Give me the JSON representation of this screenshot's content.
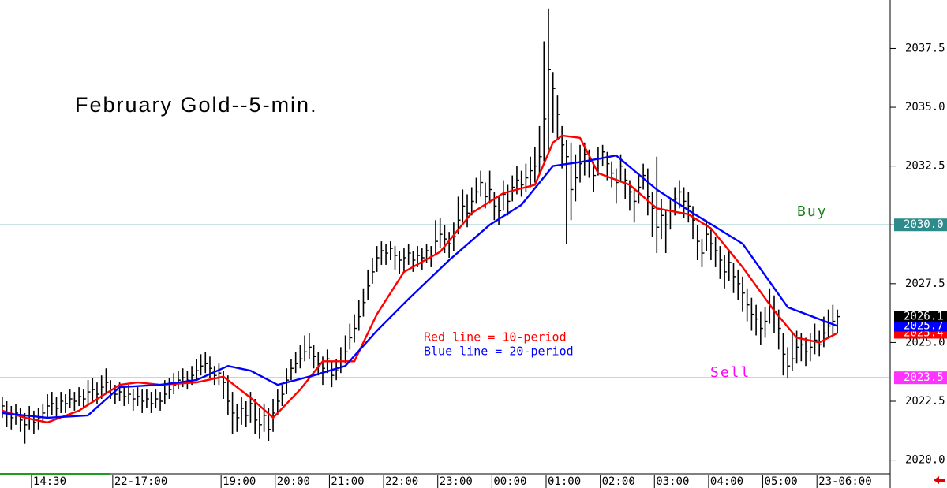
{
  "chart_data": {
    "type": "hlc",
    "title": "February Gold--5-min.",
    "bar_color": "#000000",
    "xlim": [
      -0.5,
      196.7
    ],
    "xticks": [
      {
        "value": 7,
        "label": "14:30"
      },
      {
        "value": 25,
        "label": "22-17:00"
      },
      {
        "value": 49,
        "label": "19:00"
      },
      {
        "value": 61,
        "label": "20:00"
      },
      {
        "value": 73,
        "label": "21:00"
      },
      {
        "value": 85,
        "label": "22:00"
      },
      {
        "value": 97,
        "label": "23:00"
      },
      {
        "value": 109,
        "label": "00:00"
      },
      {
        "value": 121,
        "label": "01:00"
      },
      {
        "value": 133,
        "label": "02:00"
      },
      {
        "value": 145,
        "label": "03:00"
      },
      {
        "value": 157,
        "label": "04:00"
      },
      {
        "value": 169,
        "label": "05:00"
      },
      {
        "value": 181,
        "label": "23-06:00"
      }
    ],
    "ylim": [
      2019.45,
      2039.56
    ],
    "yticks": [
      {
        "value": 2020,
        "label": "2020.0"
      },
      {
        "value": 2022.5,
        "label": "2022.5"
      },
      {
        "value": 2025,
        "label": "2025.0"
      },
      {
        "value": 2027.5,
        "label": "2027.5"
      },
      {
        "value": 2030,
        "label": "2030.0"
      },
      {
        "value": 2032.5,
        "label": "2032.5"
      },
      {
        "value": 2035,
        "label": "2035.0"
      },
      {
        "value": 2037.5,
        "label": "2037.5"
      }
    ],
    "high": [
      2022.7,
      2022.5,
      2022.3,
      2022.4,
      2022.2,
      2022.0,
      2022.3,
      2022.1,
      2022.2,
      2022.4,
      2022.8,
      2022.9,
      2022.7,
      2022.9,
      2022.8,
      2023.0,
      2022.9,
      2023.1,
      2023.0,
      2023.4,
      2023.5,
      2023.3,
      2023.6,
      2023.9,
      2023.4,
      2023.2,
      2023.3,
      2023.1,
      2023.2,
      2023.0,
      2023.1,
      2023.0,
      2023.0,
      2022.9,
      2023.0,
      2022.9,
      2023.4,
      2023.5,
      2023.7,
      2023.8,
      2023.9,
      2023.8,
      2024.0,
      2024.3,
      2024.5,
      2024.6,
      2024.4,
      2024.0,
      2024.1,
      2023.8,
      2023.6,
      2022.9,
      2022.4,
      2022.7,
      2022.5,
      2022.9,
      2022.6,
      2022.2,
      2022.4,
      2022.2,
      2022.6,
      2023.0,
      2023.2,
      2023.9,
      2024.3,
      2024.6,
      2024.9,
      2025.3,
      2025.4,
      2024.9,
      2024.6,
      2024.4,
      2024.7,
      2024.2,
      2024.3,
      2024.8,
      2025.3,
      2025.8,
      2026.2,
      2026.8,
      2027.3,
      2028.1,
      2028.6,
      2029.1,
      2029.3,
      2029.2,
      2029.3,
      2029.1,
      2028.9,
      2029.0,
      2029.2,
      2028.9,
      2029.1,
      2029.0,
      2029.2,
      2029.1,
      2030.2,
      2030.3,
      2030.0,
      2029.7,
      2030.1,
      2031.2,
      2031.5,
      2031.3,
      2031.6,
      2032.0,
      2032.3,
      2031.8,
      2032.3,
      2031.4,
      2031.2,
      2031.9,
      2031.7,
      2032.1,
      2032.5,
      2032.3,
      2032.6,
      2032.9,
      2033.3,
      2034.2,
      2037.8,
      2039.2,
      2036.5,
      2035.5,
      2034.2,
      2033.6,
      2033.5,
      2033.0,
      2033.4,
      2033.5,
      2033.2,
      2032.7,
      2033.3,
      2033.4,
      2033.1,
      2032.7,
      2032.4,
      2033.0,
      2032.4,
      2031.9,
      2031.5,
      2032.1,
      2032.6,
      2032.4,
      2031.4,
      2032.9,
      2031.1,
      2030.6,
      2031.1,
      2031.6,
      2031.9,
      2031.6,
      2031.4,
      2030.8,
      2030.0,
      2029.4,
      2030.2,
      2029.8,
      2029.5,
      2029.1,
      2028.7,
      2028.9,
      2028.4,
      2028.1,
      2027.8,
      2027.3,
      2026.9,
      2026.6,
      2026.3,
      2026.5,
      2027.3,
      2027.0,
      2026.4,
      2025.4,
      2024.8,
      2025.4,
      2025.5,
      2025.4,
      2025.2,
      2025.4,
      2025.8,
      2025.5,
      2026.1,
      2026.4,
      2026.6,
      2026.4
    ],
    "low": [
      2021.8,
      2021.4,
      2021.3,
      2021.5,
      2021.2,
      2020.7,
      2021.3,
      2021.1,
      2021.3,
      2021.6,
      2021.8,
      2021.9,
      2021.8,
      2022.0,
      2022.0,
      2022.2,
      2022.1,
      2022.3,
      2022.2,
      2022.4,
      2022.5,
      2022.4,
      2022.6,
      2022.8,
      2022.6,
      2022.4,
      2022.5,
      2022.3,
      2022.4,
      2022.1,
      2022.3,
      2022.0,
      2022.2,
      2022.0,
      2022.2,
      2022.1,
      2022.4,
      2022.6,
      2022.8,
      2023.0,
      2023.1,
      2023.0,
      2023.2,
      2023.4,
      2023.6,
      2023.7,
      2023.5,
      2023.2,
      2023.2,
      2022.6,
      2021.9,
      2021.1,
      2021.2,
      2021.5,
      2021.4,
      2021.6,
      2021.1,
      2020.9,
      2021.2,
      2020.8,
      2021.2,
      2021.9,
      2022.3,
      2022.8,
      2023.4,
      2023.7,
      2023.9,
      2024.2,
      2024.3,
      2023.9,
      2023.6,
      2023.2,
      2023.7,
      2023.1,
      2023.4,
      2023.7,
      2024.1,
      2024.7,
      2025.0,
      2025.5,
      2026.1,
      2026.8,
      2027.5,
      2028.0,
      2028.3,
      2028.3,
      2028.5,
      2028.1,
      2027.9,
      2028.0,
      2028.3,
      2028.0,
      2028.2,
      2028.1,
      2028.4,
      2028.2,
      2028.7,
      2029.0,
      2028.8,
      2028.6,
      2028.9,
      2029.6,
      2030.1,
      2029.9,
      2030.4,
      2030.9,
      2031.2,
      2030.7,
      2030.9,
      2030.2,
      2030.0,
      2030.6,
      2030.4,
      2031.0,
      2031.3,
      2031.2,
      2031.4,
      2031.6,
      2031.8,
      2032.2,
      2032.7,
      2033.2,
      2033.9,
      2033.6,
      2032.4,
      2029.2,
      2030.2,
      2031.0,
      2031.8,
      2032.1,
      2032.0,
      2031.4,
      2032.1,
      2032.5,
      2031.9,
      2031.6,
      2030.9,
      2031.8,
      2031.1,
      2030.6,
      2030.1,
      2030.9,
      2031.5,
      2030.4,
      2029.5,
      2028.8,
      2029.4,
      2028.8,
      2029.8,
      2030.4,
      2030.7,
      2030.3,
      2030.1,
      2029.4,
      2028.5,
      2028.2,
      2028.9,
      2028.5,
      2028.2,
      2027.7,
      2027.3,
      2027.6,
      2027.1,
      2026.8,
      2026.3,
      2025.9,
      2025.5,
      2025.3,
      2024.9,
      2025.2,
      2025.8,
      2025.4,
      2024.7,
      2023.6,
      2023.5,
      2023.8,
      2024.1,
      2024.2,
      2024.0,
      2024.2,
      2024.5,
      2024.4,
      2024.8,
      2025.2,
      2025.3,
      2025.4
    ],
    "close": [
      2022.3,
      2022.0,
      2021.8,
      2022.0,
      2021.7,
      2021.5,
      2021.9,
      2021.6,
      2021.8,
      2022.0,
      2022.3,
      2022.4,
      2022.2,
      2022.5,
      2022.4,
      2022.6,
      2022.5,
      2022.7,
      2022.6,
      2022.9,
      2023.0,
      2022.8,
      2023.1,
      2023.3,
      2023.0,
      2022.8,
      2022.9,
      2022.7,
      2022.8,
      2022.6,
      2022.7,
      2022.5,
      2022.6,
      2022.4,
      2022.6,
      2022.5,
      2022.8,
      2023.0,
      2023.2,
      2023.4,
      2023.5,
      2023.4,
      2023.6,
      2023.8,
      2024.0,
      2024.1,
      2023.9,
      2023.6,
      2023.7,
      2023.3,
      2022.5,
      2022.0,
      2021.8,
      2022.2,
      2021.9,
      2022.4,
      2021.7,
      2021.5,
      2021.9,
      2021.3,
      2022.0,
      2022.5,
      2022.8,
      2023.4,
      2023.9,
      2024.1,
      2024.3,
      2024.6,
      2024.8,
      2024.4,
      2024.1,
      2023.9,
      2024.3,
      2023.6,
      2023.8,
      2024.2,
      2024.6,
      2025.2,
      2025.6,
      2026.1,
      2026.7,
      2027.4,
      2028.0,
      2028.6,
      2028.9,
      2028.8,
      2029.0,
      2028.7,
      2028.5,
      2028.6,
      2028.8,
      2028.5,
      2028.7,
      2028.6,
      2028.9,
      2028.7,
      2029.3,
      2029.6,
      2029.4,
      2029.2,
      2029.5,
      2030.2,
      2030.8,
      2030.5,
      2031.0,
      2031.4,
      2031.8,
      2031.2,
      2031.5,
      2030.8,
      2030.6,
      2031.3,
      2031.0,
      2031.6,
      2031.9,
      2031.7,
      2032.0,
      2032.3,
      2032.5,
      2032.9,
      2034.5,
      2036.6,
      2035.8,
      2034.7,
      2033.4,
      2032.9,
      2031.5,
      2032.0,
      2032.6,
      2033.0,
      2032.7,
      2032.1,
      2032.8,
      2033.1,
      2032.6,
      2032.2,
      2031.8,
      2032.5,
      2031.9,
      2031.4,
      2031.0,
      2031.6,
      2032.1,
      2031.2,
      2030.7,
      2029.9,
      2030.4,
      2030.0,
      2030.6,
      2031.1,
      2031.4,
      2031.0,
      2030.8,
      2030.2,
      2029.3,
      2028.8,
      2029.6,
      2029.2,
      2028.9,
      2028.5,
      2028.0,
      2028.4,
      2027.8,
      2027.5,
      2027.1,
      2026.6,
      2026.2,
      2026.0,
      2025.6,
      2025.9,
      2026.5,
      2026.3,
      2025.6,
      2024.5,
      2024.0,
      2024.3,
      2024.8,
      2024.9,
      2024.6,
      2024.8,
      2025.1,
      2024.9,
      2025.4,
      2025.7,
      2025.9,
      2026.1
    ],
    "series": [
      {
        "name": "Red line = 10-period",
        "color": "#ff0000",
        "x": [
          0,
          5,
          10,
          17,
          26,
          30,
          35,
          43,
          49,
          55,
          60,
          66,
          71,
          78,
          83,
          89,
          97,
          104,
          111,
          118,
          122,
          124,
          128,
          132,
          139,
          145,
          152,
          157,
          164,
          171,
          176,
          181,
          185
        ],
        "values": [
          2022.1,
          2021.8,
          2021.6,
          2022.1,
          2023.2,
          2023.3,
          2023.2,
          2023.3,
          2023.55,
          2022.65,
          2021.8,
          2023.0,
          2024.2,
          2024.2,
          2026.2,
          2028.0,
          2028.85,
          2030.5,
          2031.35,
          2031.7,
          2033.5,
          2033.8,
          2033.7,
          2032.2,
          2031.7,
          2030.7,
          2030.45,
          2029.85,
          2028.2,
          2026.35,
          2025.2,
          2025.0,
          2025.4
        ]
      },
      {
        "name": "Blue line = 20-period",
        "color": "#0000ff",
        "x": [
          0,
          10,
          19,
          26,
          35,
          43,
          50,
          55,
          61,
          69,
          76,
          83,
          90,
          99,
          108,
          115,
          122,
          129,
          136,
          145,
          153,
          164,
          174,
          185
        ],
        "values": [
          2022.0,
          2021.8,
          2021.9,
          2023.1,
          2023.2,
          2023.4,
          2024.0,
          2023.8,
          2023.2,
          2023.6,
          2024.0,
          2025.5,
          2026.85,
          2028.5,
          2030.0,
          2030.85,
          2032.5,
          2032.7,
          2032.95,
          2031.5,
          2030.5,
          2029.2,
          2026.5,
          2025.7
        ]
      }
    ],
    "levels": [
      {
        "name": "Buy",
        "value": 2030,
        "label": "2030.0",
        "color": "#2e8b8b",
        "name_color": "#1a7f1a"
      },
      {
        "name": "Sell",
        "value": 2023.5,
        "label": "2023.5",
        "color": "#ff33ff",
        "name_color": "#ff00ff"
      }
    ]
  }
}
